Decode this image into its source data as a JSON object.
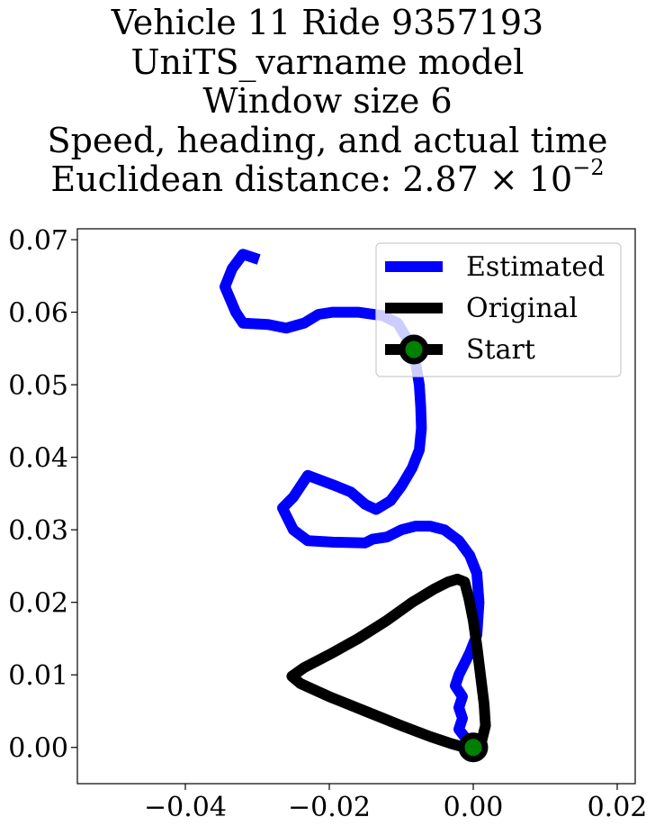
{
  "title": {
    "line1": "Vehicle 11 Ride 9357193",
    "line2": "UniTS_varname model",
    "line3": "Window size 6",
    "line4": "Speed, heading, and actual time",
    "line5_prefix": "Euclidean distance: 2.87 × 10",
    "line5_exp": "−2"
  },
  "chart_data": {
    "type": "line",
    "xlim": [
      -0.055,
      0.0225
    ],
    "ylim": [
      -0.005,
      0.0715
    ],
    "xticks": [
      -0.04,
      -0.02,
      0.0,
      0.02
    ],
    "xtick_labels": [
      "−0.04",
      "−0.02",
      "0.00",
      "0.02"
    ],
    "yticks": [
      0.0,
      0.01,
      0.02,
      0.03,
      0.04,
      0.05,
      0.06,
      0.07
    ],
    "ytick_labels": [
      "0.00",
      "0.01",
      "0.02",
      "0.03",
      "0.04",
      "0.05",
      "0.06",
      "0.07"
    ],
    "grid": false,
    "legend_position": "top-right",
    "series": [
      {
        "name": "Estimated",
        "color": "#0000ff",
        "x": [
          -0.0305,
          -0.032,
          -0.0335,
          -0.0345,
          -0.033,
          -0.032,
          -0.0285,
          -0.026,
          -0.0235,
          -0.0215,
          -0.0195,
          -0.016,
          -0.0125,
          -0.0105,
          -0.009,
          -0.008,
          -0.0075,
          -0.0073,
          -0.0072,
          -0.0075,
          -0.0085,
          -0.01,
          -0.0115,
          -0.0135,
          -0.015,
          -0.017,
          -0.0195,
          -0.023,
          -0.025,
          -0.0265,
          -0.025,
          -0.023,
          -0.0195,
          -0.015,
          -0.014,
          -0.012,
          -0.01,
          -0.008,
          -0.006,
          -0.004,
          -0.002,
          -0.0005,
          0.0005,
          0.0008,
          0.0005,
          -0.0005,
          -0.002,
          -0.0025,
          -0.0015,
          -0.002,
          -0.0015,
          -0.002,
          -0.001,
          0.0,
          0.0005,
          0.0002
        ],
        "y": [
          0.0675,
          0.068,
          0.066,
          0.0635,
          0.06,
          0.0585,
          0.0583,
          0.0578,
          0.0585,
          0.0597,
          0.06,
          0.06,
          0.0595,
          0.0585,
          0.056,
          0.053,
          0.05,
          0.047,
          0.044,
          0.041,
          0.0385,
          0.036,
          0.034,
          0.0328,
          0.0335,
          0.0352,
          0.0362,
          0.0375,
          0.0345,
          0.033,
          0.03,
          0.0285,
          0.0283,
          0.0282,
          0.0287,
          0.029,
          0.03,
          0.0305,
          0.0305,
          0.03,
          0.0285,
          0.0265,
          0.024,
          0.02,
          0.0155,
          0.013,
          0.01,
          0.0085,
          0.007,
          0.0055,
          0.004,
          0.0025,
          0.0012,
          0.0005,
          0.0003,
          0.0
        ]
      },
      {
        "name": "Original",
        "color": "#000000",
        "x": [
          0.0,
          0.0012,
          0.0017,
          0.0015,
          0.001,
          0.0005,
          0.0,
          -0.0006,
          -0.0012,
          -0.0022,
          -0.0035,
          -0.0055,
          -0.0085,
          -0.012,
          -0.016,
          -0.02,
          -0.0235,
          -0.0252,
          -0.024,
          -0.02,
          -0.015,
          -0.01,
          -0.006,
          -0.003,
          -0.0012,
          0.0
        ],
        "y": [
          0.0,
          0.001,
          0.003,
          0.006,
          0.01,
          0.014,
          0.0175,
          0.0205,
          0.0228,
          0.0232,
          0.0228,
          0.0218,
          0.02,
          0.0175,
          0.015,
          0.0128,
          0.011,
          0.0098,
          0.0088,
          0.007,
          0.005,
          0.003,
          0.0015,
          0.0005,
          0.0,
          0.0
        ]
      }
    ],
    "start_marker": {
      "name": "Start",
      "x": 0.0,
      "y": 0.0,
      "color": "#008000",
      "edge": "#000000"
    }
  }
}
